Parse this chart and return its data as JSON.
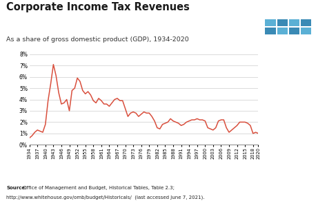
{
  "title": "Corporate Income Tax Revenues",
  "subtitle": "As a share of gross domestic product (GDP), 1934-2020",
  "source_bold": "Source:",
  "source_line1": " Office of Management and Budget, Historical Tables, Table 2.3;",
  "source_line2": "http://www.whitehouse.gov/omb/budget/Historicals/  (last accessed June 7, 2021).",
  "line_color": "#d94f3d",
  "ylim": [
    0,
    8
  ],
  "years": [
    1934,
    1935,
    1936,
    1937,
    1938,
    1939,
    1940,
    1941,
    1942,
    1943,
    1944,
    1945,
    1946,
    1947,
    1948,
    1949,
    1950,
    1951,
    1952,
    1953,
    1954,
    1955,
    1956,
    1957,
    1958,
    1959,
    1960,
    1961,
    1962,
    1963,
    1964,
    1965,
    1966,
    1967,
    1968,
    1969,
    1970,
    1971,
    1972,
    1973,
    1974,
    1975,
    1976,
    1977,
    1978,
    1979,
    1980,
    1981,
    1982,
    1983,
    1984,
    1985,
    1986,
    1987,
    1988,
    1989,
    1990,
    1991,
    1992,
    1993,
    1994,
    1995,
    1996,
    1997,
    1998,
    1999,
    2000,
    2001,
    2002,
    2003,
    2004,
    2005,
    2006,
    2007,
    2008,
    2009,
    2010,
    2011,
    2012,
    2013,
    2014,
    2015,
    2016,
    2017,
    2018,
    2019,
    2020
  ],
  "values": [
    0.6,
    0.8,
    1.1,
    1.3,
    1.2,
    1.1,
    1.8,
    3.9,
    5.4,
    7.1,
    6.1,
    4.6,
    3.6,
    3.7,
    4.0,
    3.0,
    4.8,
    5.0,
    5.9,
    5.6,
    4.8,
    4.5,
    4.7,
    4.4,
    3.9,
    3.7,
    4.1,
    3.9,
    3.6,
    3.6,
    3.4,
    3.7,
    4.0,
    4.1,
    3.9,
    3.9,
    3.2,
    2.5,
    2.8,
    2.9,
    2.8,
    2.5,
    2.7,
    2.9,
    2.8,
    2.8,
    2.5,
    2.1,
    1.5,
    1.4,
    1.8,
    1.9,
    2.0,
    2.3,
    2.1,
    2.0,
    1.9,
    1.7,
    1.8,
    2.0,
    2.1,
    2.2,
    2.2,
    2.3,
    2.2,
    2.2,
    2.1,
    1.5,
    1.4,
    1.3,
    1.5,
    2.1,
    2.2,
    2.2,
    1.5,
    1.1,
    1.3,
    1.5,
    1.7,
    2.0,
    2.0,
    2.0,
    1.9,
    1.7,
    1.0,
    1.1,
    1.0
  ],
  "xtick_years": [
    1934,
    1937,
    1940,
    1943,
    1946,
    1949,
    1952,
    1955,
    1958,
    1961,
    1964,
    1967,
    1970,
    1973,
    1976,
    1979,
    1982,
    1985,
    1988,
    1991,
    1994,
    1997,
    2000,
    2003,
    2006,
    2009,
    2012,
    2015,
    2018,
    2020
  ],
  "tpc_bg_color": "#1e3d6e",
  "tpc_tile_light": "#5bb0d5",
  "tpc_tile_dark": "#3a8ab5"
}
